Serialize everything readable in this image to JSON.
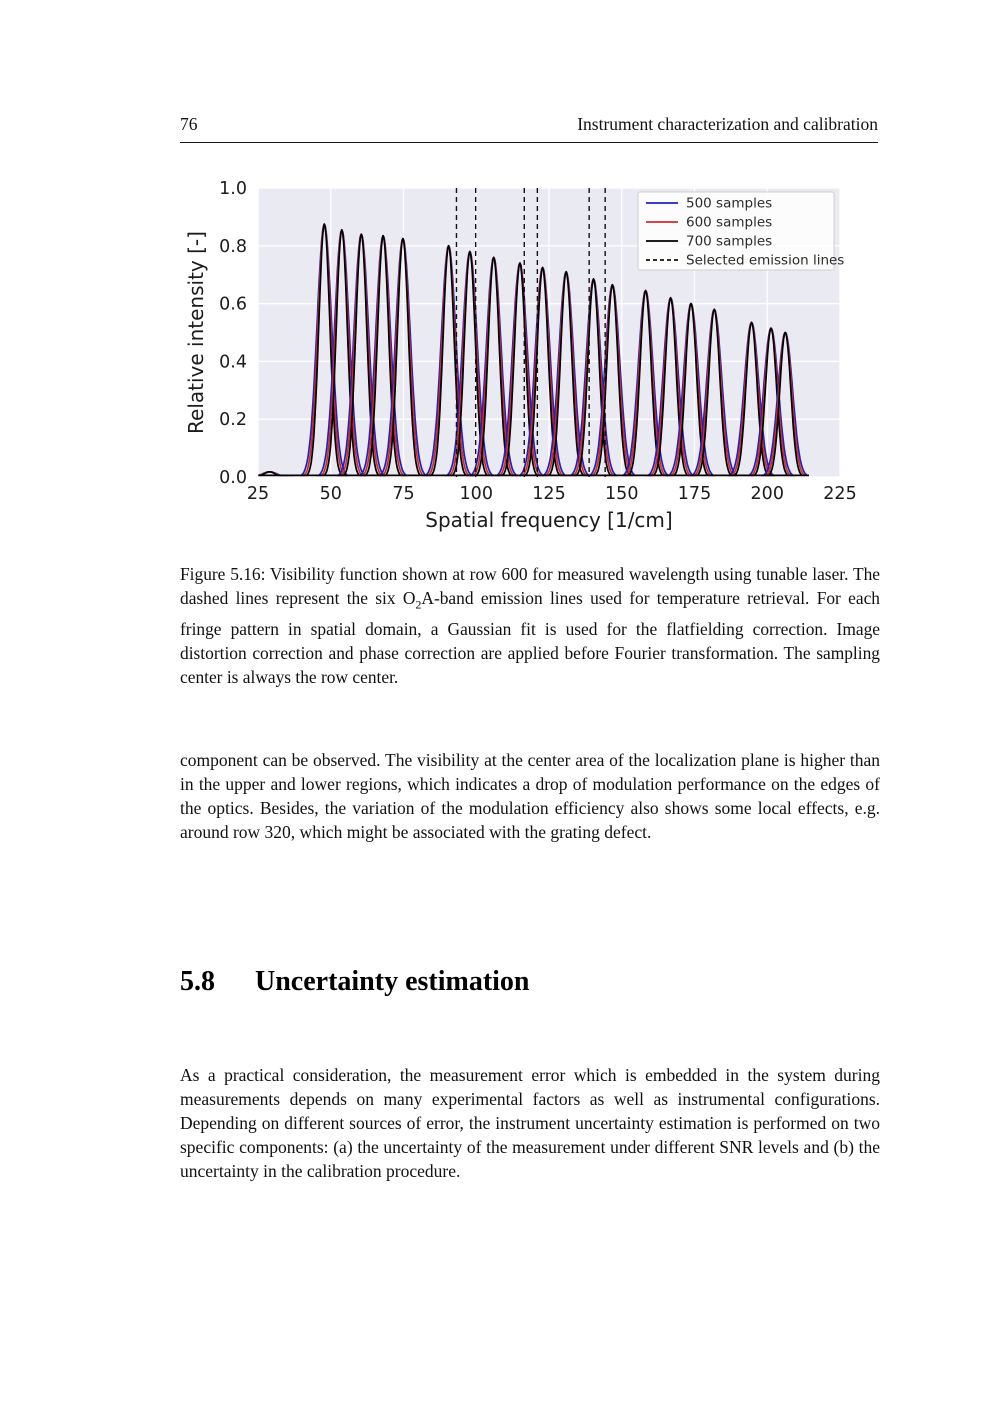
{
  "page": {
    "number": "76",
    "header_title": "Instrument characterization and calibration"
  },
  "figure": {
    "caption_part1": "Figure 5.16: Visibility function shown at row 600 for measured wavelength using tunable laser. The dashed lines represent the six O",
    "caption_sub": "2",
    "caption_part2": "A-band emission lines used for temperature retrieval. For each fringe pattern in spatial domain, a Gaussian fit is used for the flatfielding correction. Image distortion correction and phase correction are applied before Fourier transformation. The sampling center is always the row center."
  },
  "body": {
    "paragraph1": "component can be observed. The visibility at the center area of the localization plane is higher than in the upper and lower regions, which indicates a drop of modulation performance on the edges of the optics. Besides, the variation of the modulation efficiency also shows some local effects, e.g. around row 320, which might be associated with the grating defect.",
    "section_number": "5.8",
    "section_title": "Uncertainty estimation",
    "paragraph2": "As a practical consideration, the measurement error which is embedded in the system during measurements depends on many experimental factors as well as instrumental configurations. Depending on different sources of error, the instrument uncertainty estimation is performed on two specific components: (a) the uncertainty of the measurement under different SNR levels and (b) the uncertainty in the calibration procedure."
  },
  "chart_data": {
    "type": "line",
    "title": "",
    "xlabel": "Spatial frequency [1/cm]",
    "ylabel": "Relative intensity [-]",
    "xlim": [
      25,
      225
    ],
    "ylim": [
      0.0,
      1.0
    ],
    "xticks": [
      25,
      50,
      75,
      100,
      125,
      150,
      175,
      200,
      225
    ],
    "yticks": [
      0.0,
      0.2,
      0.4,
      0.6,
      0.8,
      1.0
    ],
    "grid": true,
    "background": "#eaeaf2",
    "grid_color": "#ffffff",
    "tick_color": "#1c1c1c",
    "legend_position": "upper right",
    "series": [
      {
        "name": "500 samples",
        "color": "#2121bd",
        "sigma": 2.5
      },
      {
        "name": "600 samples",
        "color": "#d42a2a",
        "sigma": 2.2
      },
      {
        "name": "700 samples",
        "color": "#000000",
        "sigma": 1.9
      }
    ],
    "peaks": [
      {
        "center": 29.0,
        "height": 0.018
      },
      {
        "center": 47.8,
        "height": 0.875
      },
      {
        "center": 53.8,
        "height": 0.855
      },
      {
        "center": 60.5,
        "height": 0.84
      },
      {
        "center": 68.0,
        "height": 0.835
      },
      {
        "center": 74.8,
        "height": 0.825
      },
      {
        "center": 90.5,
        "height": 0.8
      },
      {
        "center": 97.8,
        "height": 0.78
      },
      {
        "center": 106.0,
        "height": 0.76
      },
      {
        "center": 115.0,
        "height": 0.74
      },
      {
        "center": 122.8,
        "height": 0.725
      },
      {
        "center": 130.9,
        "height": 0.71
      },
      {
        "center": 140.3,
        "height": 0.685
      },
      {
        "center": 146.8,
        "height": 0.665
      },
      {
        "center": 158.2,
        "height": 0.645
      },
      {
        "center": 166.8,
        "height": 0.62
      },
      {
        "center": 173.8,
        "height": 0.6
      },
      {
        "center": 181.8,
        "height": 0.58
      },
      {
        "center": 194.6,
        "height": 0.535
      },
      {
        "center": 201.3,
        "height": 0.515
      },
      {
        "center": 206.2,
        "height": 0.5
      }
    ],
    "emission_lines": [
      93.2,
      99.8,
      116.5,
      121.0,
      138.8,
      144.3
    ],
    "emission_lines_label": "Selected emission lines",
    "emission_line_color": "#111111",
    "baseline": 0.006
  }
}
